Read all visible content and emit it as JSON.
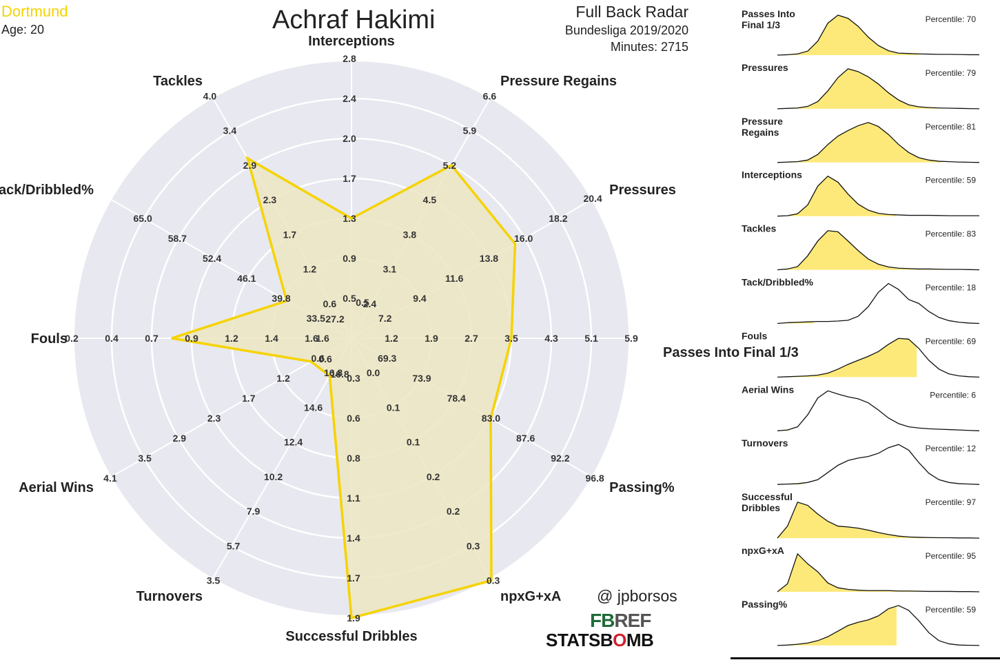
{
  "header": {
    "team": "Dortmund",
    "age_label": "Age: 20",
    "player": "Achraf Hakimi",
    "radar_title": "Full Back Radar",
    "competition": "Bundesliga 2019/2020",
    "minutes_label": "Minutes: 2715"
  },
  "credits": {
    "handle": "@ jpborsos",
    "fbref_a": "FB",
    "fbref_b": "REF",
    "statsbomb_a": "STATSB",
    "statsbomb_b": "O",
    "statsbomb_c": "MB"
  },
  "colors": {
    "accent": "#f5d300",
    "fill": "#ece6c2",
    "radar_bg": "#e8e8f0",
    "dist_fill": "#fde97a",
    "team": "#f5d300"
  },
  "chart_data": [
    {
      "type": "radar",
      "axes": [
        {
          "label": "Interceptions",
          "ticks": [
            "0.5",
            "0.9",
            "1.3",
            "1.7",
            "2.0",
            "2.4",
            "2.8"
          ],
          "value": 1.3
        },
        {
          "label": "Pressure Regains",
          "ticks": [
            "2.4",
            "3.1",
            "3.8",
            "4.5",
            "5.2",
            "5.9",
            "6.6"
          ],
          "value": 5.2
        },
        {
          "label": "Pressures",
          "ticks": [
            "7.2",
            "9.4",
            "11.6",
            "13.8",
            "16.0",
            "18.2",
            "20.4"
          ],
          "value": 15.4
        },
        {
          "label": "Passes Into Final 1/3",
          "ticks": [
            "1.2",
            "1.9",
            "2.7",
            "3.5",
            "4.3",
            "5.1",
            "5.9"
          ],
          "value": 3.5
        },
        {
          "label": "Passing%",
          "ticks": [
            "69.3",
            "73.9",
            "78.4",
            "83.0",
            "87.6",
            "92.2",
            "96.8"
          ],
          "value": 83.1
        },
        {
          "label": "npxG+xA",
          "ticks": [
            "0.0",
            "0.1",
            "0.1",
            "0.2",
            "0.2",
            "0.3",
            "0.3"
          ],
          "value": 0.34
        },
        {
          "label": "Successful Dribbles",
          "ticks": [
            "0.3",
            "0.6",
            "0.8",
            "1.1",
            "1.4",
            "1.7",
            "1.9"
          ],
          "value": 1.9
        },
        {
          "label": "Turnovers",
          "ticks": [
            "16.8",
            "14.6",
            "12.4",
            "10.2",
            "7.9",
            "5.7",
            "3.5"
          ],
          "value": 16.6
        },
        {
          "label": "Aerial Wins",
          "ticks": [
            "0.6",
            "1.2",
            "1.7",
            "2.3",
            "2.9",
            "3.5",
            "4.1"
          ],
          "value": 0.7
        },
        {
          "label": "Fouls",
          "ticks": [
            "1.6",
            "1.4",
            "1.2",
            "0.9",
            "0.7",
            "0.4",
            "0.2"
          ],
          "value": 0.8
        },
        {
          "label": "Tack/Dribbled%",
          "ticks": [
            "33.5",
            "39.8",
            "46.1",
            "52.4",
            "58.7",
            "65.0"
          ],
          "value": 39.0
        },
        {
          "label": "Tackles",
          "ticks": [
            "0.6",
            "1.2",
            "1.7",
            "2.3",
            "2.9",
            "3.4",
            "4.0"
          ],
          "value": 3.0
        }
      ],
      "center_labels": [
        "27.2",
        "0.5",
        "1.6",
        "0.6",
        "16.8"
      ]
    },
    {
      "type": "area",
      "description_kind": "percentile distributions",
      "panels": [
        {
          "label": "Passes Into\nFinal 1/3",
          "percentile_label": "Percentile: 70",
          "percentile": 70,
          "x": [
            0,
            5,
            10,
            15,
            20,
            25,
            30,
            35,
            40,
            45,
            50,
            55,
            60,
            65,
            70,
            75,
            80,
            85,
            90,
            95,
            100
          ],
          "density": [
            0.0,
            0.01,
            0.03,
            0.1,
            0.35,
            0.8,
            1.0,
            0.92,
            0.72,
            0.45,
            0.24,
            0.11,
            0.05,
            0.04,
            0.03,
            0.025,
            0.02,
            0.02,
            0.015,
            0.01,
            0.01
          ]
        },
        {
          "label": "Pressures",
          "percentile_label": "Percentile: 79",
          "percentile": 79,
          "x": [
            0,
            5,
            10,
            15,
            20,
            25,
            30,
            35,
            40,
            45,
            50,
            55,
            60,
            65,
            70,
            75,
            80,
            85,
            90,
            95,
            100
          ],
          "density": [
            0.0,
            0.01,
            0.02,
            0.06,
            0.18,
            0.45,
            0.78,
            1.0,
            0.93,
            0.8,
            0.62,
            0.4,
            0.22,
            0.1,
            0.05,
            0.03,
            0.02,
            0.015,
            0.01,
            0.005,
            0.0
          ]
        },
        {
          "label": "Pressure\nRegains",
          "percentile_label": "Percentile: 81",
          "percentile": 81,
          "x": [
            0,
            5,
            10,
            15,
            20,
            25,
            30,
            35,
            40,
            45,
            50,
            55,
            60,
            65,
            70,
            75,
            80,
            85,
            90,
            95,
            100
          ],
          "density": [
            0.0,
            0.01,
            0.02,
            0.06,
            0.2,
            0.45,
            0.66,
            0.8,
            0.92,
            1.0,
            0.9,
            0.7,
            0.45,
            0.25,
            0.12,
            0.06,
            0.03,
            0.02,
            0.01,
            0.005,
            0.0
          ]
        },
        {
          "label": "Interceptions",
          "percentile_label": "Percentile: 59",
          "percentile": 59,
          "x": [
            0,
            5,
            10,
            15,
            20,
            25,
            30,
            35,
            40,
            45,
            50,
            55,
            60,
            65,
            70,
            75,
            80,
            85,
            90,
            95,
            100
          ],
          "density": [
            0.0,
            0.01,
            0.06,
            0.28,
            0.75,
            1.0,
            0.85,
            0.55,
            0.3,
            0.15,
            0.07,
            0.04,
            0.03,
            0.02,
            0.02,
            0.02,
            0.015,
            0.01,
            0.01,
            0.01,
            0.01
          ]
        },
        {
          "label": "Tackles",
          "percentile_label": "Percentile: 83",
          "percentile": 83,
          "x": [
            0,
            5,
            10,
            15,
            20,
            25,
            30,
            35,
            40,
            45,
            50,
            55,
            60,
            65,
            70,
            75,
            80,
            85,
            90,
            95,
            100
          ],
          "density": [
            0.0,
            0.02,
            0.08,
            0.35,
            0.72,
            0.98,
            0.95,
            0.72,
            0.48,
            0.27,
            0.14,
            0.07,
            0.04,
            0.03,
            0.02,
            0.02,
            0.015,
            0.01,
            0.01,
            0.005,
            0.0
          ]
        },
        {
          "label": "Tack/Dribbled%",
          "percentile_label": "Percentile: 18",
          "percentile": 18,
          "x": [
            0,
            5,
            10,
            15,
            20,
            25,
            30,
            35,
            40,
            45,
            50,
            55,
            60,
            65,
            70,
            75,
            80,
            85,
            90,
            95,
            100
          ],
          "density": [
            0.0,
            0.02,
            0.03,
            0.04,
            0.05,
            0.05,
            0.06,
            0.08,
            0.18,
            0.42,
            0.78,
            1.0,
            0.85,
            0.6,
            0.5,
            0.3,
            0.15,
            0.07,
            0.03,
            0.01,
            0.0
          ]
        },
        {
          "label": "Fouls",
          "percentile_label": "Percentile: 69",
          "percentile": 69,
          "x": [
            0,
            5,
            10,
            15,
            20,
            25,
            30,
            35,
            40,
            45,
            50,
            55,
            60,
            65,
            70,
            75,
            80,
            85,
            90,
            95,
            100
          ],
          "density": [
            0.0,
            0.01,
            0.02,
            0.03,
            0.05,
            0.1,
            0.2,
            0.32,
            0.42,
            0.52,
            0.64,
            0.82,
            0.97,
            0.95,
            0.72,
            0.42,
            0.2,
            0.08,
            0.03,
            0.01,
            0.0
          ]
        },
        {
          "label": "Aerial Wins",
          "percentile_label": "Percentile: 6",
          "percentile": 6,
          "x": [
            0,
            5,
            10,
            15,
            20,
            25,
            30,
            35,
            40,
            45,
            50,
            55,
            60,
            65,
            70,
            75,
            80,
            85,
            90,
            95,
            100
          ],
          "density": [
            0.0,
            0.02,
            0.1,
            0.4,
            0.82,
            1.0,
            0.92,
            0.85,
            0.8,
            0.7,
            0.52,
            0.32,
            0.18,
            0.1,
            0.07,
            0.05,
            0.04,
            0.03,
            0.02,
            0.01,
            0.0
          ]
        },
        {
          "label": "Turnovers",
          "percentile_label": "Percentile: 12",
          "percentile": 12,
          "x": [
            0,
            5,
            10,
            15,
            20,
            25,
            30,
            35,
            40,
            45,
            50,
            55,
            60,
            65,
            70,
            75,
            80,
            85,
            90,
            95,
            100
          ],
          "density": [
            0.0,
            0.01,
            0.02,
            0.05,
            0.12,
            0.3,
            0.48,
            0.6,
            0.66,
            0.7,
            0.78,
            0.92,
            1.0,
            0.86,
            0.55,
            0.28,
            0.12,
            0.05,
            0.02,
            0.01,
            0.0
          ]
        },
        {
          "label": "Successful\nDribbles",
          "percentile_label": "Percentile: 97",
          "percentile": 97,
          "x": [
            0,
            5,
            10,
            15,
            20,
            25,
            30,
            35,
            40,
            45,
            50,
            55,
            60,
            65,
            70,
            75,
            80,
            85,
            90,
            95,
            100
          ],
          "density": [
            0.0,
            0.3,
            0.9,
            0.82,
            0.6,
            0.42,
            0.3,
            0.28,
            0.25,
            0.2,
            0.14,
            0.09,
            0.05,
            0.03,
            0.02,
            0.015,
            0.01,
            0.01,
            0.005,
            0.005,
            0.0
          ]
        },
        {
          "label": "npxG+xA",
          "percentile_label": "Percentile: 95",
          "percentile": 95,
          "x": [
            0,
            5,
            10,
            15,
            20,
            25,
            30,
            35,
            40,
            45,
            50,
            55,
            60,
            65,
            70,
            75,
            80,
            85,
            90,
            95,
            100
          ],
          "density": [
            0.0,
            0.2,
            0.95,
            0.7,
            0.5,
            0.22,
            0.1,
            0.06,
            0.04,
            0.03,
            0.03,
            0.03,
            0.02,
            0.02,
            0.015,
            0.01,
            0.01,
            0.01,
            0.005,
            0.005,
            0.0
          ]
        },
        {
          "label": "Passing%",
          "percentile_label": "Percentile: 59",
          "percentile": 59,
          "x": [
            0,
            5,
            10,
            15,
            20,
            25,
            30,
            35,
            40,
            45,
            50,
            55,
            60,
            65,
            70,
            75,
            80,
            85,
            90,
            95,
            100
          ],
          "density": [
            0.0,
            0.01,
            0.03,
            0.06,
            0.12,
            0.22,
            0.36,
            0.5,
            0.58,
            0.64,
            0.74,
            0.92,
            1.0,
            0.88,
            0.62,
            0.32,
            0.12,
            0.04,
            0.01,
            0.005,
            0.0
          ]
        }
      ]
    }
  ]
}
